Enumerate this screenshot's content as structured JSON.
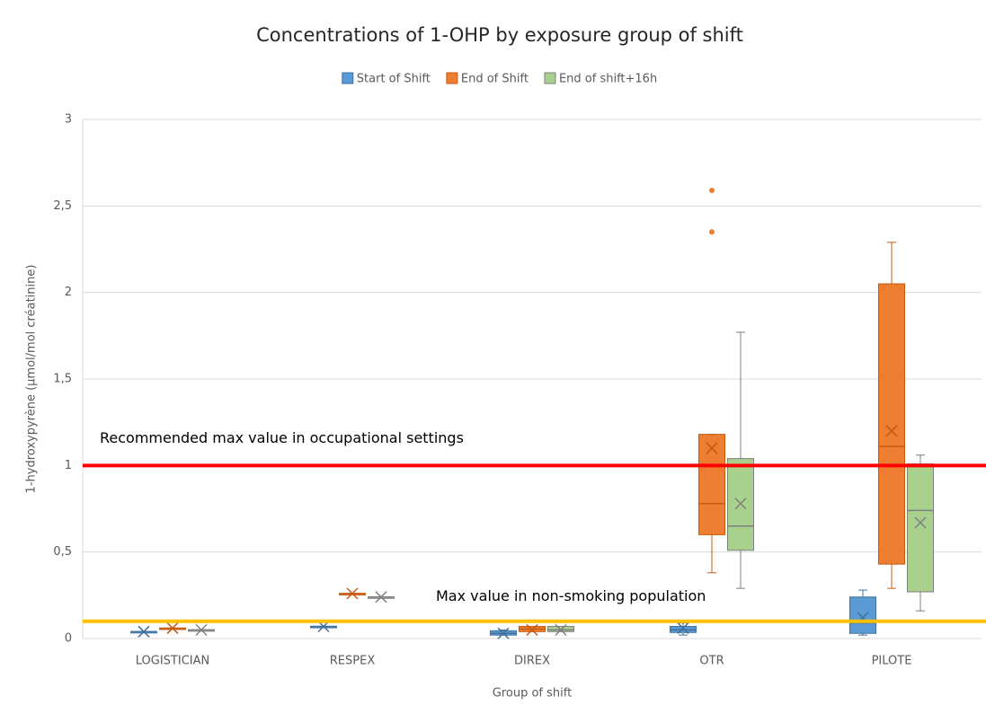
{
  "chart_data": {
    "type": "box",
    "title": "Concentrations of 1-OHP by exposure group of shift",
    "x_label": "Group of shift",
    "y_label": "1-hydroxypyrène (µmol/mol créatinine)",
    "categories": [
      "LOGISTICIAN",
      "RESPEX",
      "DIREX",
      "OTR",
      "PILOTE"
    ],
    "ylim": [
      0,
      3
    ],
    "yticks": [
      0,
      {
        "value": 0.5,
        "label": "0,5"
      },
      1,
      {
        "value": 1.5,
        "label": "1,5"
      },
      2,
      {
        "value": 2.5,
        "label": "2,5"
      },
      3
    ],
    "grid": true,
    "legend": "top",
    "series": [
      {
        "name": "Start of Shift",
        "color": "#5b9bd5",
        "edge": "#41719c",
        "mean_color": "#41719c",
        "boxes": [
          {
            "min": 0.04,
            "q1": 0.04,
            "median": 0.04,
            "q3": 0.04,
            "max": 0.04,
            "mean": 0.04,
            "outliers": []
          },
          {
            "min": 0.07,
            "q1": 0.07,
            "median": 0.07,
            "q3": 0.07,
            "max": 0.07,
            "mean": 0.07,
            "outliers": []
          },
          {
            "min": 0.02,
            "q1": 0.02,
            "median": 0.03,
            "q3": 0.045,
            "max": 0.05,
            "mean": 0.03,
            "outliers": []
          },
          {
            "min": 0.02,
            "q1": 0.035,
            "median": 0.05,
            "q3": 0.07,
            "max": 0.09,
            "mean": 0.06,
            "outliers": []
          },
          {
            "min": 0.02,
            "q1": 0.03,
            "median": 0.09,
            "q3": 0.24,
            "max": 0.28,
            "mean": 0.12,
            "outliers": []
          }
        ]
      },
      {
        "name": "End of Shift",
        "color": "#ed7d31",
        "edge": "#c55a11",
        "mean_color": "#c55a11",
        "boxes": [
          {
            "min": 0.06,
            "q1": 0.06,
            "median": 0.06,
            "q3": 0.06,
            "max": 0.06,
            "mean": 0.06,
            "outliers": []
          },
          {
            "min": 0.26,
            "q1": 0.26,
            "median": 0.26,
            "q3": 0.26,
            "max": 0.26,
            "mean": 0.26,
            "outliers": []
          },
          {
            "min": 0.04,
            "q1": 0.04,
            "median": 0.055,
            "q3": 0.07,
            "max": 0.07,
            "mean": 0.05,
            "outliers": []
          },
          {
            "min": 0.38,
            "q1": 0.6,
            "median": 0.78,
            "q3": 1.18,
            "max": 1.18,
            "mean": 1.1,
            "outliers": [
              2.35,
              2.59
            ]
          },
          {
            "min": 0.29,
            "q1": 0.43,
            "median": 1.11,
            "q3": 2.05,
            "max": 2.29,
            "mean": 1.2,
            "outliers": []
          }
        ]
      },
      {
        "name": "End of shift+16h",
        "color": "#a9d18e",
        "edge": "#7f7f7f",
        "mean_color": "#7f7f7f",
        "boxes": [
          {
            "min": 0.05,
            "q1": 0.05,
            "median": 0.05,
            "q3": 0.05,
            "max": 0.05,
            "mean": 0.05,
            "outliers": []
          },
          {
            "min": 0.24,
            "q1": 0.24,
            "median": 0.24,
            "q3": 0.24,
            "max": 0.24,
            "mean": 0.24,
            "outliers": []
          },
          {
            "min": 0.04,
            "q1": 0.04,
            "median": 0.05,
            "q3": 0.07,
            "max": 0.07,
            "mean": 0.05,
            "outliers": []
          },
          {
            "min": 0.29,
            "q1": 0.51,
            "median": 0.65,
            "q3": 1.04,
            "max": 1.77,
            "mean": 0.78,
            "outliers": []
          },
          {
            "min": 0.16,
            "q1": 0.27,
            "median": 0.74,
            "q3": 1.01,
            "max": 1.06,
            "mean": 0.67,
            "outliers": []
          }
        ]
      }
    ],
    "reference_lines": [
      {
        "label": "Recommended max value in occupational settings",
        "value": 1,
        "color": "#ff0000"
      },
      {
        "label": "Max value in non-smoking population",
        "value": 0.1,
        "color": "#ffc000"
      }
    ]
  }
}
